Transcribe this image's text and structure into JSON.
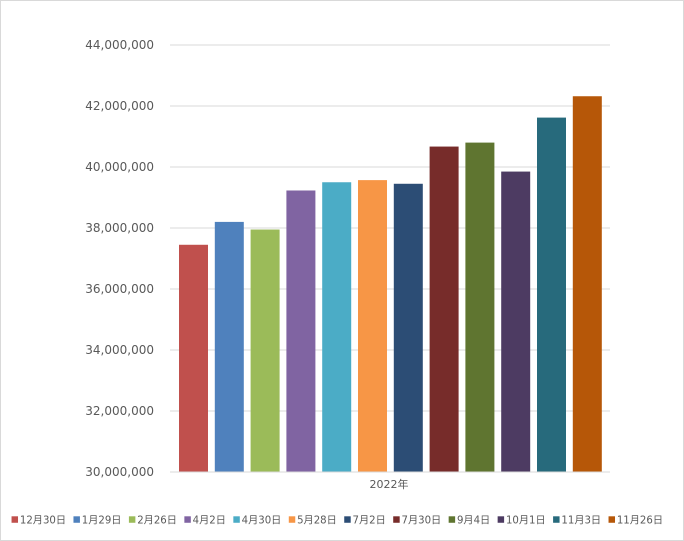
{
  "chart_data": {
    "type": "bar",
    "title": "",
    "xlabel": "",
    "ylabel": "",
    "category_label": "2022年",
    "ylim": [
      30000000,
      44000000
    ],
    "yticks": [
      30000000,
      32000000,
      34000000,
      36000000,
      38000000,
      40000000,
      42000000,
      44000000
    ],
    "ytick_labels": [
      "30,000,000",
      "32,000,000",
      "34,000,000",
      "36,000,000",
      "38,000,000",
      "40,000,000",
      "42,000,000",
      "44,000,000"
    ],
    "grid": true,
    "legend_position": "bottom",
    "series": [
      {
        "name": "12月30日",
        "value": 37450000,
        "color": "#c0504d"
      },
      {
        "name": "1月29日",
        "value": 38200000,
        "color": "#4f81bd"
      },
      {
        "name": "2月26日",
        "value": 37950000,
        "color": "#9bbb59"
      },
      {
        "name": "4月2日",
        "value": 39230000,
        "color": "#8064a2"
      },
      {
        "name": "4月30日",
        "value": 39500000,
        "color": "#4bacc6"
      },
      {
        "name": "5月28日",
        "value": 39570000,
        "color": "#f79646"
      },
      {
        "name": "7月2日",
        "value": 39450000,
        "color": "#2c4d75"
      },
      {
        "name": "7月30日",
        "value": 40670000,
        "color": "#772c2a"
      },
      {
        "name": "9月4日",
        "value": 40800000,
        "color": "#5f7530"
      },
      {
        "name": "10月1日",
        "value": 39850000,
        "color": "#4d3b62"
      },
      {
        "name": "11月3日",
        "value": 41620000,
        "color": "#276a7c"
      },
      {
        "name": "11月26日",
        "value": 42320000,
        "color": "#b65708"
      }
    ]
  }
}
